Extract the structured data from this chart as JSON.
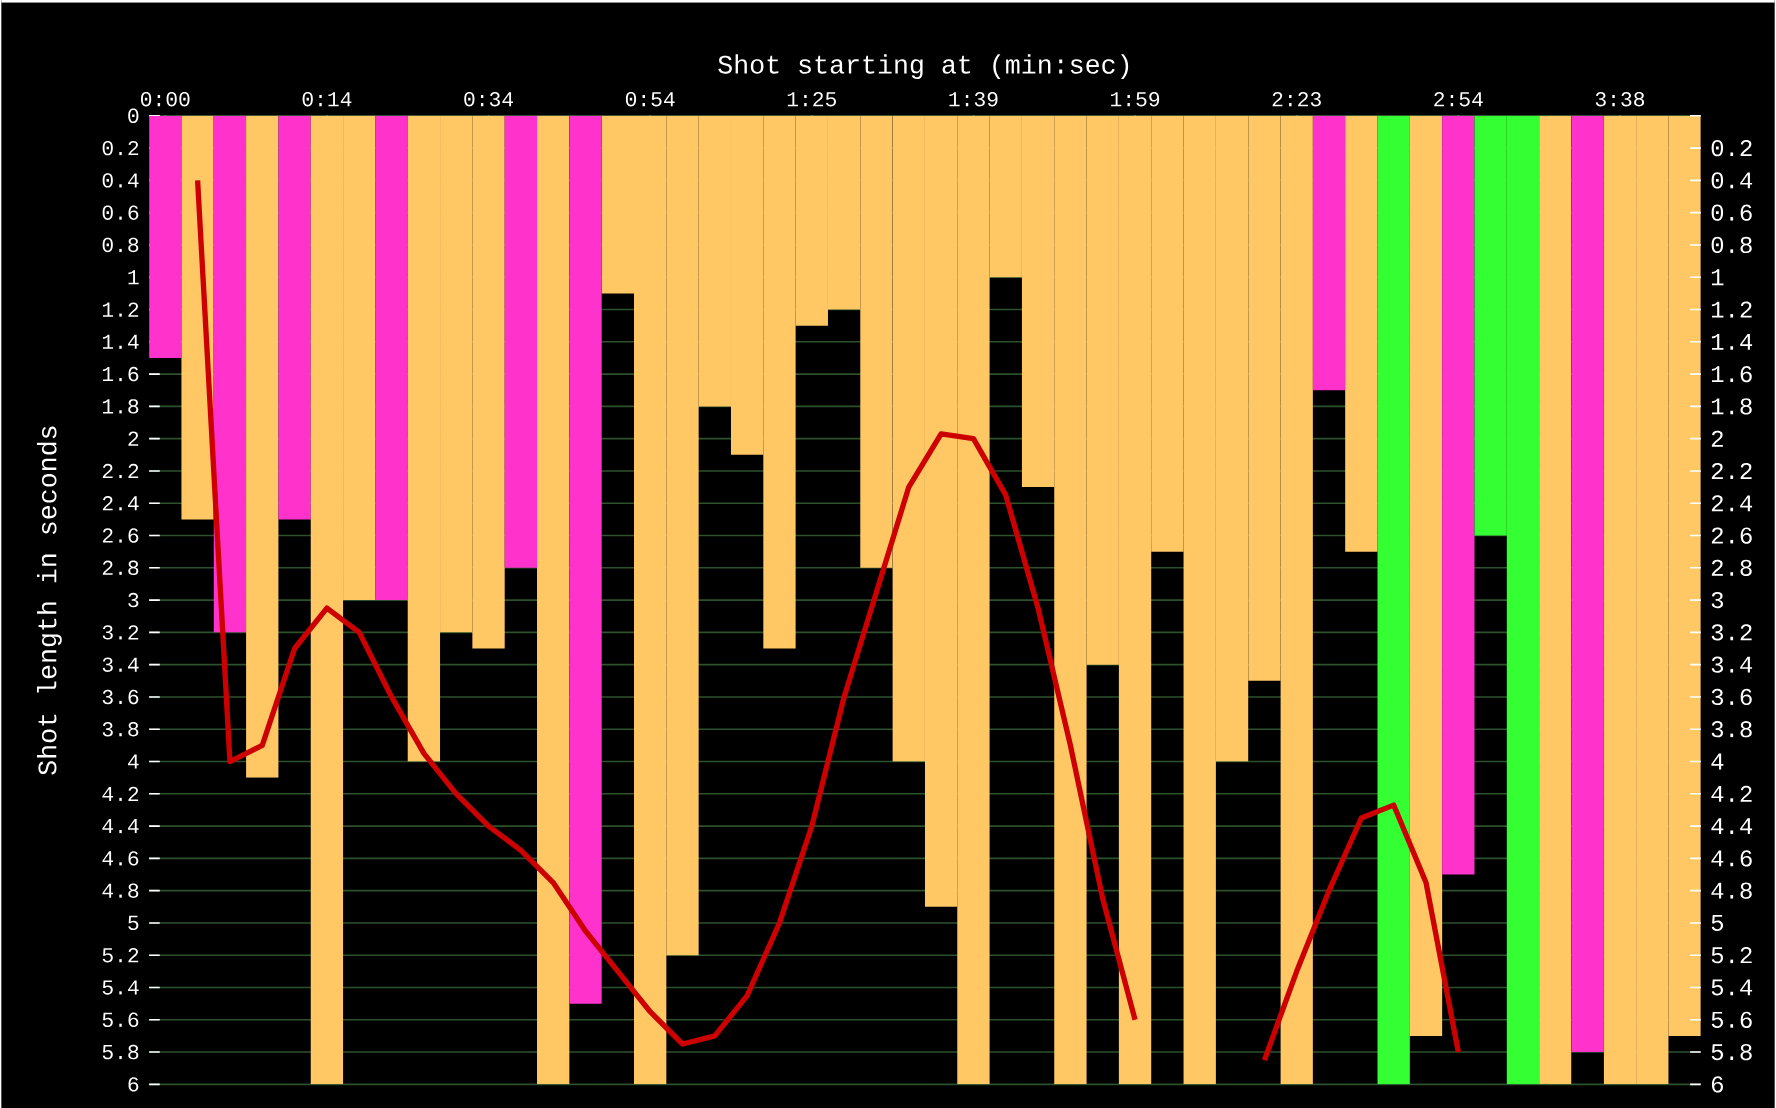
{
  "chart_data": {
    "type": "bar",
    "xlabel": "Shot starting at (min:sec)",
    "ylabel": "Shot length in seconds",
    "categories": [
      "0:00",
      null,
      null,
      null,
      null,
      "0:14",
      null,
      null,
      null,
      null,
      "0:34",
      null,
      null,
      null,
      null,
      "0:54",
      null,
      null,
      null,
      null,
      "1:25",
      null,
      null,
      null,
      null,
      "1:39",
      null,
      null,
      null,
      null,
      "1:59",
      null,
      null,
      null,
      null,
      "2:23",
      null,
      null,
      null,
      null,
      "2:54",
      null,
      null,
      null,
      null,
      "3:38",
      null,
      null
    ],
    "series": [
      {
        "values": [
          1.5,
          2.5,
          3.2,
          4.1,
          2.5,
          6,
          3,
          3,
          4,
          3.2,
          3.3,
          2.8,
          6,
          5.5,
          1.1,
          6,
          5.2,
          1.8,
          2.1,
          3.3,
          1.3,
          1.2,
          2.8,
          4,
          4.9,
          6,
          1,
          2.3,
          6,
          3.4,
          6,
          2.7,
          6,
          4,
          3.5,
          6,
          1.7,
          2.7,
          6,
          5.7,
          4.7,
          2.6,
          6,
          6,
          5.8,
          6,
          6,
          5.7
        ],
        "colors": [
          "#ff33cc",
          "#ffc864",
          "#ff33cc",
          "#ffc864",
          "#ff33cc",
          "#ffc864",
          "#ffc864",
          "#ff33cc",
          "#ffc864",
          "#ffc864",
          "#ffc864",
          "#ff33cc",
          "#ffc864",
          "#ff33cc",
          "#ffc864",
          "#ffc864",
          "#ffc864",
          "#ffc864",
          "#ffc864",
          "#ffc864",
          "#ffc864",
          "#ffc864",
          "#ffc864",
          "#ffc864",
          "#ffc864",
          "#ffc864",
          "#ffc864",
          "#ffc864",
          "#ffc864",
          "#ffc864",
          "#ffc864",
          "#ffc864",
          "#ffc864",
          "#ffc864",
          "#ffc864",
          "#ffc864",
          "#ff33cc",
          "#ffc864",
          "#33ff33",
          "#ffc864",
          "#ff33cc",
          "#33ff33",
          "#33ff33",
          "#ffc864",
          "#ff33cc",
          "#ffc864",
          "#ffc864",
          "#ffc864"
        ]
      },
      {
        "type": "line",
        "color": "#cc0000",
        "values": [
          null,
          0.4,
          4.0,
          3.9,
          3.3,
          3.05,
          3.2,
          3.6,
          3.95,
          4.2,
          4.4,
          4.55,
          4.75,
          5.05,
          5.3,
          5.55,
          5.75,
          5.7,
          5.45,
          5.0,
          4.4,
          3.6,
          2.95,
          2.3,
          1.97,
          2.0,
          2.35,
          3.05,
          3.9,
          4.85,
          5.6,
          null,
          null,
          null,
          5.85,
          5.3,
          4.8,
          4.35,
          4.27,
          4.75,
          5.8,
          null,
          null,
          null,
          null,
          null,
          null,
          null
        ]
      }
    ],
    "ylim": [
      6,
      0
    ],
    "yticks": [
      0,
      0.2,
      0.4,
      0.6,
      0.8,
      1,
      1.2,
      1.4,
      1.6,
      1.8,
      2,
      2.2,
      2.4,
      2.6,
      2.8,
      3,
      3.2,
      3.4,
      3.6,
      3.8,
      4,
      4.2,
      4.4,
      4.6,
      4.8,
      5,
      5.2,
      5.4,
      5.6,
      5.8,
      6
    ],
    "y2lim": [
      6,
      0
    ],
    "y2ticks": [
      {
        "value": 0,
        "label": null
      },
      0.2,
      0.4,
      0.6,
      0.8,
      1,
      1.2,
      1.4,
      1.6,
      1.8,
      2,
      2.2,
      2.4,
      2.6,
      2.8,
      3,
      3.2,
      3.4,
      3.6,
      3.8,
      4,
      4.2,
      4.4,
      4.6,
      4.8,
      5,
      5.2,
      5.4,
      5.6,
      5.8,
      6
    ],
    "grid": "y",
    "marker": "none",
    "line_style": "solid"
  }
}
